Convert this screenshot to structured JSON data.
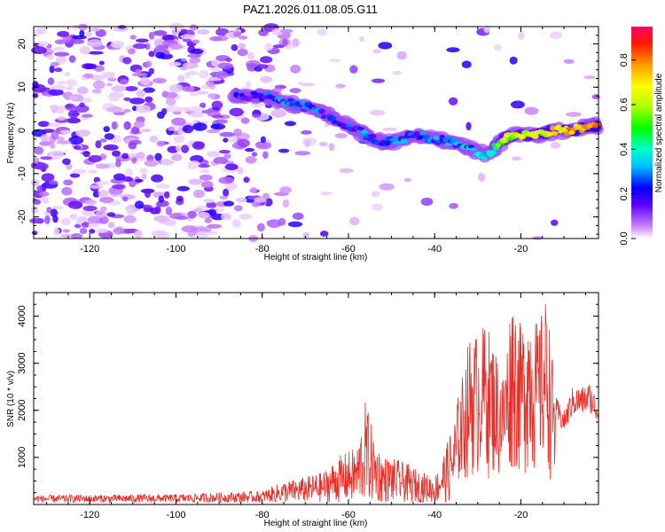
{
  "figure": {
    "title": "PAZ1.2026.011.08.05.G11"
  },
  "chart_data": [
    {
      "type": "heatmap",
      "name": "spectrogram",
      "xlabel": "Height of straight line (km)",
      "ylabel": "Frequency (Hz)",
      "xlim": [
        -133,
        -2
      ],
      "ylim": [
        -25,
        24
      ],
      "x_ticks": [
        -120,
        -100,
        -80,
        -60,
        -40,
        -20
      ],
      "y_ticks": [
        -20,
        -10,
        0,
        10,
        20
      ],
      "colorbar": {
        "label": "Normalized spectral amplitude",
        "range": [
          0,
          0.95
        ],
        "ticks": [
          0,
          0.2,
          0.4,
          0.6,
          0.8
        ]
      },
      "ridge": {
        "description_heights_km": [
          -86,
          -80,
          -76,
          -72,
          -68,
          -64,
          -60,
          -56,
          -52,
          -48,
          -44,
          -40,
          -36,
          -32,
          -28,
          -24,
          -20,
          -16,
          -12,
          -8,
          -4,
          -2
        ],
        "frequency_hz": [
          8,
          8,
          7,
          6,
          5,
          3,
          1,
          -1,
          -3,
          -2,
          -1,
          -2,
          -3,
          -4,
          -6,
          -2,
          -1,
          -1,
          0,
          0,
          1,
          1
        ],
        "amplitude": [
          0.25,
          0.3,
          0.35,
          0.3,
          0.35,
          0.3,
          0.3,
          0.35,
          0.3,
          0.35,
          0.3,
          0.35,
          0.35,
          0.45,
          0.4,
          0.7,
          0.75,
          0.7,
          0.8,
          0.85,
          0.9,
          0.9
        ]
      }
    },
    {
      "type": "line",
      "name": "snr",
      "xlabel": "Height of straight line (km)",
      "ylabel": "SNR (10 * v/v)",
      "xlim": [
        -133,
        -2
      ],
      "ylim": [
        0,
        4500
      ],
      "x_ticks": [
        -120,
        -100,
        -80,
        -60,
        -40,
        -20
      ],
      "y_ticks": [
        1000,
        2000,
        3000,
        4000
      ],
      "color": "#e8302a",
      "envelope": {
        "x": [
          -133,
          -100,
          -80,
          -75,
          -70,
          -66,
          -62,
          -58,
          -56,
          -54,
          -52,
          -48,
          -44,
          -40,
          -37,
          -34,
          -32,
          -30,
          -28,
          -26,
          -24,
          -22,
          -20,
          -18,
          -16,
          -14,
          -12,
          -10,
          -8,
          -6,
          -4,
          -2
        ],
        "y": [
          160,
          180,
          250,
          450,
          550,
          650,
          1000,
          1200,
          2200,
          1400,
          1000,
          900,
          700,
          550,
          1300,
          2400,
          3400,
          3500,
          3700,
          3200,
          2700,
          4400,
          3600,
          4200,
          3600,
          4300,
          2300,
          2000,
          2500,
          2500,
          2600,
          2200
        ]
      }
    }
  ]
}
